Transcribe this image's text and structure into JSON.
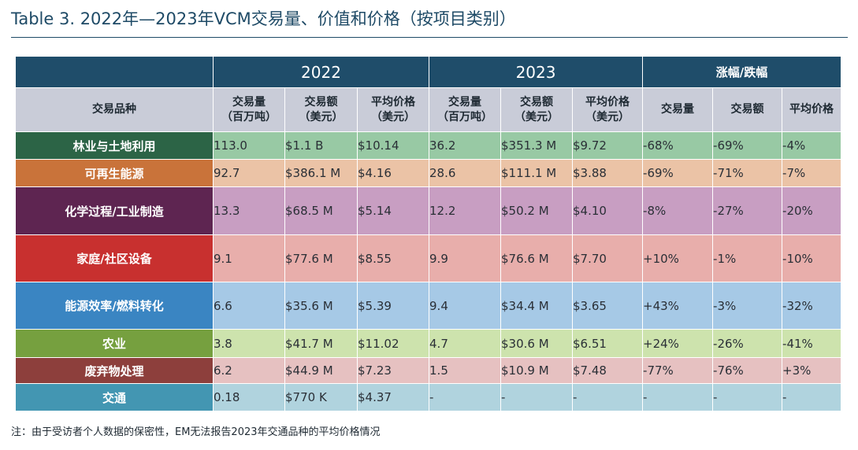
{
  "title": "Table 3. 2022年—2023年VCM交易量、价值和价格（按项目类别）",
  "header": {
    "year_2022": "2022",
    "year_2023": "2023",
    "change": "涨幅/跌幅",
    "category": "交易品种",
    "volume_l1": "交易量",
    "volume_l2": "（百万吨）",
    "value_l1": "交易额",
    "value_l2": "（美元）",
    "price_l1": "平均价格",
    "price_l2": "（美元）",
    "chg_volume": "交易量",
    "chg_value": "交易额",
    "chg_price": "平均价格"
  },
  "rows": [
    {
      "category": "林业与土地利用",
      "cat_color": "#2c6446",
      "cell_color": "#98c9a4",
      "v22": "113.0",
      "val22": "$1.1 B",
      "p22": "$10.14",
      "v23": "36.2",
      "val23": "$351.3 M",
      "p23": "$9.72",
      "cv": "-68%",
      "cval": "-69%",
      "cp": "-4%"
    },
    {
      "category": "可再生能源",
      "cat_color": "#c9733a",
      "cell_color": "#ebc3a6",
      "v22": "92.7",
      "val22": "$386.1 M",
      "p22": "$4.16",
      "v23": "28.6",
      "val23": "$111.1 M",
      "p23": "$3.88",
      "cv": "-69%",
      "cval": "-71%",
      "cp": "-7%"
    },
    {
      "category": "化学过程/工业制造",
      "cat_color": "#5e2551",
      "cell_color": "#c89ec2",
      "v22": "13.3",
      "val22": "$68.5 M",
      "p22": "$5.14",
      "v23": "12.2",
      "val23": "$50.2 M",
      "p23": "$4.10",
      "cv": "-8%",
      "cval": "-27%",
      "cp": "-20%"
    },
    {
      "category": "家庭/社区设备",
      "cat_color": "#c8302f",
      "cell_color": "#e8aeab",
      "v22": "9.1",
      "val22": "$77.6 M",
      "p22": "$8.55",
      "v23": "9.9",
      "val23": "$76.6 M",
      "p23": "$7.70",
      "cv": "+10%",
      "cval": "-1%",
      "cp": "-10%"
    },
    {
      "category": "能源效率/燃料转化",
      "cat_color": "#3a85c2",
      "cell_color": "#a6c9e6",
      "v22": "6.6",
      "val22": "$35.6 M",
      "p22": "$5.39",
      "v23": "9.4",
      "val23": "$34.4 M",
      "p23": "$3.65",
      "cv": "+43%",
      "cval": "-3%",
      "cp": "-32%"
    },
    {
      "category": "农业",
      "cat_color": "#76a03f",
      "cell_color": "#cde3ad",
      "v22": "3.8",
      "val22": "$41.7 M",
      "p22": "$11.02",
      "v23": "4.7",
      "val23": "$30.6 M",
      "p23": "$6.51",
      "cv": "+24%",
      "cval": "-26%",
      "cp": "-41%"
    },
    {
      "category": "废弃物处理",
      "cat_color": "#8d3f3c",
      "cell_color": "#e6c1c1",
      "v22": "6.2",
      "val22": "$44.9 M",
      "p22": "$7.23",
      "v23": "1.5",
      "val23": "$10.9 M",
      "p23": "$7.48",
      "cv": "-77%",
      "cval": "-76%",
      "cp": "+3%"
    },
    {
      "category": "交通",
      "cat_color": "#4396b2",
      "cell_color": "#b0d3de",
      "v22": "0.18",
      "val22": "$770 K",
      "p22": "$4.37",
      "v23": "-",
      "val23": "-",
      "p23": "-",
      "cv": "-",
      "cval": "-",
      "cp": "-"
    }
  ],
  "footnote": "注：由于受访者个人数据的保密性，EM无法报告2023年交通品种的平均价格情况"
}
